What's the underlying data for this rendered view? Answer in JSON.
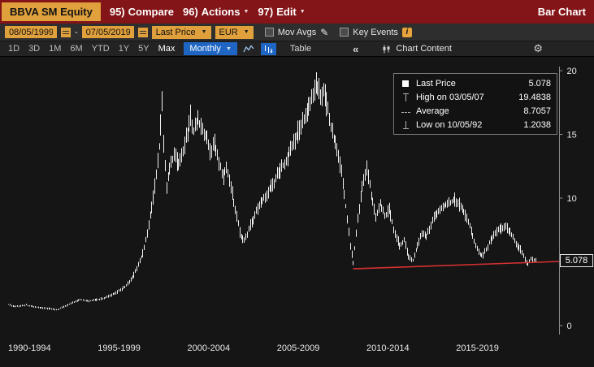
{
  "top_bar": {
    "security": "BBVA SM Equity",
    "items": [
      {
        "num": "95)",
        "label": "Compare"
      },
      {
        "num": "96)",
        "label": "Actions"
      },
      {
        "num": "97)",
        "label": "Edit"
      }
    ],
    "right_label": "Bar Chart"
  },
  "toolbar": {
    "date_from": "08/05/1999",
    "date_to": "07/05/2019",
    "date_separator": "-",
    "study": "Last Price",
    "currency": "EUR",
    "mov_avgs": "Mov Avgs",
    "key_events": "Key Events"
  },
  "period_bar": {
    "ranges": [
      "1D",
      "3D",
      "1M",
      "6M",
      "YTD",
      "1Y",
      "5Y",
      "Max"
    ],
    "frequency": "Monthly",
    "table_label": "Table",
    "chart_content_label": "Chart Content"
  },
  "icons": {
    "caret_down": "▼",
    "pencil": "✎",
    "info": "i",
    "collapse": "«",
    "gear": "⚙"
  },
  "legend": {
    "items": [
      {
        "label": "Last Price",
        "value": "5.078"
      },
      {
        "label": "High on 03/05/07",
        "value": "19.4838"
      },
      {
        "label": "Average",
        "value": "8.7057"
      },
      {
        "label": "Low on 10/05/92",
        "value": "1.2038"
      }
    ]
  },
  "chart_data": {
    "type": "bar",
    "title": "BBVA SM Equity - Last Price (EUR), Monthly bars",
    "x_axis": {
      "labels": [
        "1990-1994",
        "1995-1999",
        "2000-2004",
        "2005-2009",
        "2010-2014",
        "2015-2019"
      ],
      "label_years": [
        1990,
        1995,
        2000,
        2005,
        2010,
        2015
      ],
      "start_year": 1990,
      "end_year": 2019.42
    },
    "y_axis": {
      "ticks": [
        20,
        15,
        10,
        5,
        0
      ],
      "range": [
        0,
        20.5
      ],
      "grid": false
    },
    "last_price": 5.078,
    "last_price_label": "5.078",
    "high": {
      "date": "03/05/07",
      "value": 19.4838
    },
    "low": {
      "date": "10/05/92",
      "value": 1.2038
    },
    "average": 8.7057,
    "anchors": [
      [
        1990.0,
        1.65
      ],
      [
        1990.33,
        1.5
      ],
      [
        1990.67,
        1.55
      ],
      [
        1991.0,
        1.62
      ],
      [
        1991.33,
        1.5
      ],
      [
        1991.67,
        1.42
      ],
      [
        1992.0,
        1.38
      ],
      [
        1992.42,
        1.3
      ],
      [
        1992.75,
        1.24
      ],
      [
        1993.0,
        1.42
      ],
      [
        1993.5,
        1.75
      ],
      [
        1994.0,
        2.05
      ],
      [
        1994.5,
        1.92
      ],
      [
        1995.0,
        2.05
      ],
      [
        1995.5,
        2.25
      ],
      [
        1996.0,
        2.55
      ],
      [
        1996.5,
        3.05
      ],
      [
        1996.9,
        3.7
      ],
      [
        1997.2,
        4.6
      ],
      [
        1997.5,
        5.7
      ],
      [
        1997.75,
        7.2
      ],
      [
        1998.0,
        9.2
      ],
      [
        1998.25,
        11.8
      ],
      [
        1998.45,
        14.5
      ],
      [
        1998.58,
        17.6
      ],
      [
        1998.7,
        13.2
      ],
      [
        1998.83,
        10.9
      ],
      [
        1999.0,
        12.2
      ],
      [
        1999.25,
        13.4
      ],
      [
        1999.5,
        12.6
      ],
      [
        1999.75,
        13.8
      ],
      [
        2000.0,
        15.1
      ],
      [
        2000.17,
        16.4
      ],
      [
        2000.33,
        15.3
      ],
      [
        2000.58,
        16.1
      ],
      [
        2000.83,
        15.3
      ],
      [
        2001.0,
        14.9
      ],
      [
        2001.25,
        13.6
      ],
      [
        2001.5,
        14.3
      ],
      [
        2001.75,
        12.9
      ],
      [
        2002.0,
        11.6
      ],
      [
        2002.17,
        12.6
      ],
      [
        2002.42,
        10.9
      ],
      [
        2002.67,
        9.2
      ],
      [
        2002.92,
        7.3
      ],
      [
        2003.17,
        6.6
      ],
      [
        2003.5,
        7.9
      ],
      [
        2003.83,
        8.9
      ],
      [
        2004.17,
        9.9
      ],
      [
        2004.5,
        10.5
      ],
      [
        2004.83,
        11.3
      ],
      [
        2005.17,
        12.2
      ],
      [
        2005.5,
        13.0
      ],
      [
        2005.83,
        14.0
      ],
      [
        2006.17,
        15.2
      ],
      [
        2006.5,
        16.2
      ],
      [
        2006.83,
        17.3
      ],
      [
        2007.17,
        19.2
      ],
      [
        2007.42,
        17.9
      ],
      [
        2007.58,
        18.6
      ],
      [
        2007.83,
        16.9
      ],
      [
        2008.08,
        15.1
      ],
      [
        2008.33,
        13.9
      ],
      [
        2008.58,
        12.1
      ],
      [
        2008.83,
        9.4
      ],
      [
        2009.08,
        6.3
      ],
      [
        2009.25,
        4.9
      ],
      [
        2009.5,
        8.4
      ],
      [
        2009.75,
        10.9
      ],
      [
        2010.0,
        12.4
      ],
      [
        2010.25,
        10.3
      ],
      [
        2010.5,
        8.6
      ],
      [
        2010.75,
        9.6
      ],
      [
        2011.0,
        8.6
      ],
      [
        2011.25,
        9.1
      ],
      [
        2011.5,
        7.6
      ],
      [
        2011.83,
        6.3
      ],
      [
        2012.08,
        6.7
      ],
      [
        2012.33,
        5.4
      ],
      [
        2012.58,
        5.1
      ],
      [
        2012.83,
        6.3
      ],
      [
        2013.08,
        7.3
      ],
      [
        2013.33,
        6.9
      ],
      [
        2013.67,
        8.3
      ],
      [
        2014.0,
        9.0
      ],
      [
        2014.33,
        9.4
      ],
      [
        2014.67,
        9.7
      ],
      [
        2014.92,
        9.9
      ],
      [
        2015.17,
        9.5
      ],
      [
        2015.42,
        8.9
      ],
      [
        2015.75,
        7.9
      ],
      [
        2016.0,
        6.6
      ],
      [
        2016.25,
        5.7
      ],
      [
        2016.5,
        5.5
      ],
      [
        2016.83,
        6.5
      ],
      [
        2017.17,
        7.3
      ],
      [
        2017.5,
        7.6
      ],
      [
        2017.83,
        7.7
      ],
      [
        2018.08,
        7.2
      ],
      [
        2018.33,
        6.5
      ],
      [
        2018.58,
        6.0
      ],
      [
        2018.83,
        5.2
      ],
      [
        2019.0,
        4.85
      ],
      [
        2019.17,
        5.25
      ],
      [
        2019.42,
        5.078
      ]
    ],
    "trendline": {
      "start_year": 2009.25,
      "start_value": 4.45,
      "end_value": 5.03,
      "color": "#d53030"
    }
  },
  "colors": {
    "panel_red": "#831417",
    "amber": "#e0a03c",
    "blue_accent": "#1f66c4",
    "chart_bg": "#151515",
    "bar_color": "#f0f0f0",
    "trendline_red": "#d53030"
  }
}
